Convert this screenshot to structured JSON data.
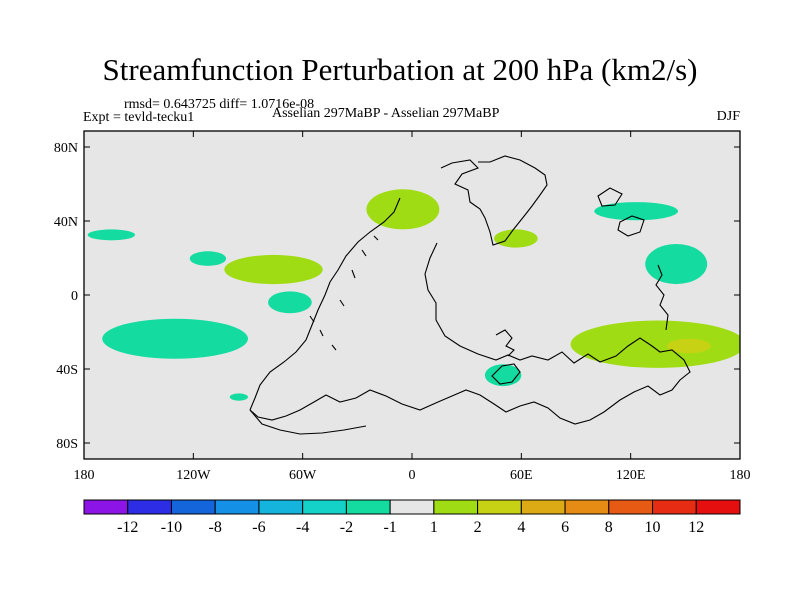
{
  "chart_data": {
    "type": "heatmap",
    "title": "Streamfunction Perturbation at 200 hPa (km2/s)",
    "stats_text": "rmsd= 0.643725 diff= 1.0716e-08",
    "left_label": "Expt = tevld-tecku1",
    "center_label": "Asselian 297MaBP - Asselian 297MaBP",
    "right_label": "DJF",
    "x_ticks": [
      "180",
      "120W",
      "60W",
      "0",
      "60E",
      "120E",
      "180"
    ],
    "y_ticks": [
      "80N",
      "40N",
      "0",
      "40S",
      "80S"
    ],
    "xlim": [
      -180,
      180
    ],
    "ylim": [
      -90,
      90
    ],
    "background_color": "#e6e6e6",
    "colorbar": {
      "colors": [
        "#8c14e6",
        "#2d2de6",
        "#1464dc",
        "#1491e6",
        "#14b4dc",
        "#14d2c8",
        "#14dca0",
        "#e6e6e6",
        "#a0dc14",
        "#c8d214",
        "#dcaa14",
        "#e68c14",
        "#e65a14",
        "#e62d14",
        "#e60f0f"
      ],
      "labels": [
        "-12",
        "-10",
        "-8",
        "-6",
        "-4",
        "-2",
        "-1",
        "1",
        "2",
        "4",
        "6",
        "8",
        "10",
        "12"
      ]
    },
    "anomalies": [
      {
        "name": "neg-west-pacific-n",
        "lon": -165,
        "lat": 33,
        "rlon": 13,
        "rlat": 3,
        "color": "#14dca0"
      },
      {
        "name": "neg-central-pacific",
        "lon": -112,
        "lat": 20,
        "rlon": 10,
        "rlat": 4,
        "color": "#14dca0"
      },
      {
        "name": "neg-east-pacific",
        "lon": -67,
        "lat": -4,
        "rlon": 12,
        "rlat": 6,
        "color": "#14dca0"
      },
      {
        "name": "neg-south-pacific",
        "lon": -130,
        "lat": -24,
        "rlon": 40,
        "rlat": 11,
        "color": "#14dca0"
      },
      {
        "name": "neg-south-pacific-small",
        "lon": -95,
        "lat": -56,
        "rlon": 5,
        "rlat": 2,
        "color": "#14dca0"
      },
      {
        "name": "neg-east-asia",
        "lon": 123,
        "lat": 46,
        "rlon": 23,
        "rlat": 5,
        "color": "#14dca0"
      },
      {
        "name": "neg-west-pacific-eq",
        "lon": 145,
        "lat": 17,
        "rlon": 17,
        "rlat": 11,
        "color": "#14dca0"
      },
      {
        "name": "neg-south-africa",
        "lon": 50,
        "lat": -44,
        "rlon": 10,
        "rlat": 6,
        "color": "#14dca0"
      },
      {
        "name": "pos-north-pacific",
        "lon": -76,
        "lat": 14,
        "rlon": 27,
        "rlat": 8,
        "color": "#a0dc14"
      },
      {
        "name": "pos-north-atlantic",
        "lon": -5,
        "lat": 47,
        "rlon": 20,
        "rlat": 11,
        "color": "#a0dc14"
      },
      {
        "name": "pos-asia",
        "lon": 57,
        "lat": 31,
        "rlon": 12,
        "rlat": 5,
        "color": "#a0dc14"
      },
      {
        "name": "pos-south-pacific-east",
        "lon": 135,
        "lat": -27,
        "rlon": 48,
        "rlat": 13,
        "color": "#a0dc14"
      },
      {
        "name": "pos-south-pacific-core",
        "lon": 152,
        "lat": -28,
        "rlon": 12,
        "rlat": 4,
        "color": "#c8d214"
      }
    ]
  }
}
